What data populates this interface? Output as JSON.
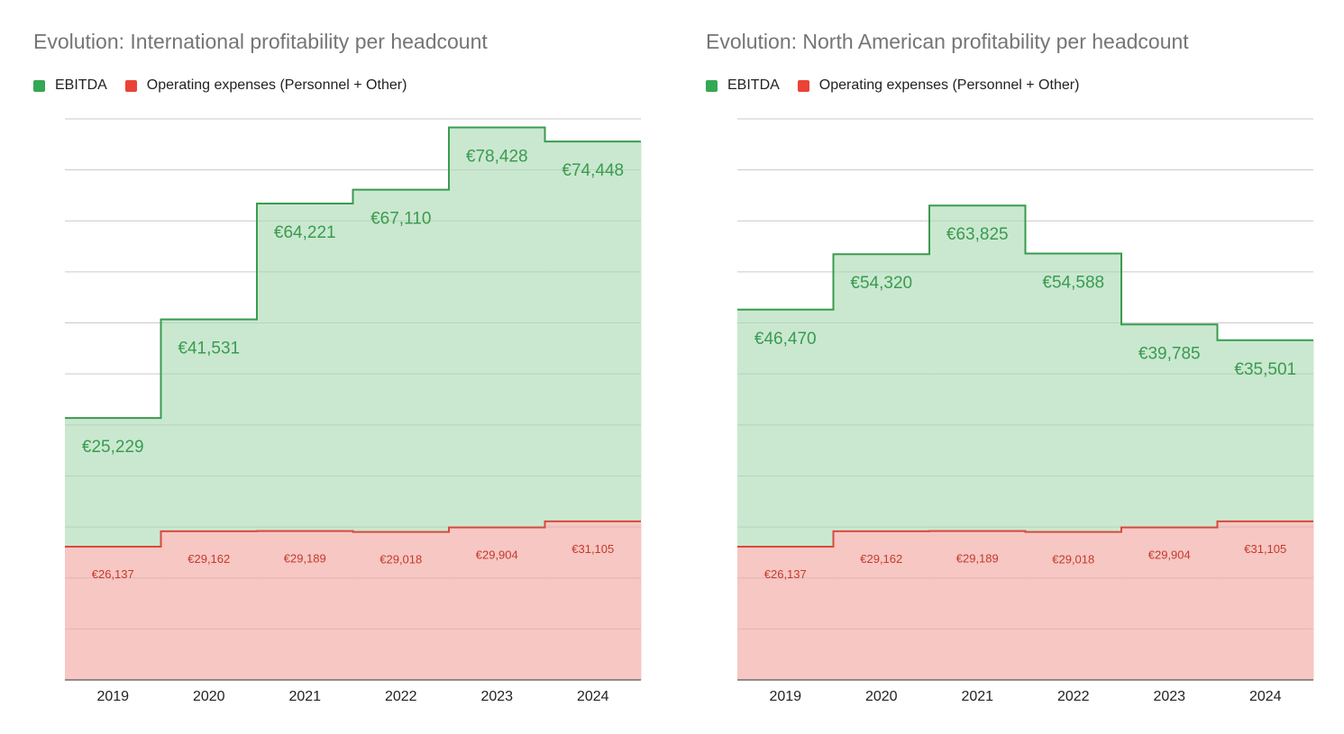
{
  "colors": {
    "ebitda_line": "#3a9b4f",
    "ebitda_fill": "#c4e6cb",
    "ebitda_label": "#3a9b4f",
    "opex_line": "#d94a3d",
    "opex_fill": "#f6c4c0",
    "opex_label": "#c5392d",
    "legend_ebitda": "#34a853",
    "legend_opex": "#ea4335",
    "grid": "#dcdcdc"
  },
  "chart_data": [
    {
      "type": "area",
      "subtype": "stepped-stacked",
      "title": "Evolution: International profitability per headcount",
      "xlabel": "",
      "ylabel": "",
      "categories": [
        "2019",
        "2020",
        "2021",
        "2022",
        "2023",
        "2024"
      ],
      "series": [
        {
          "name": "EBITDA",
          "values": [
            25229,
            41531,
            64221,
            67110,
            78428,
            74448
          ],
          "labels": [
            "€25,229",
            "€41,531",
            "€64,221",
            "€67,110",
            "€78,428",
            "€74,448"
          ]
        },
        {
          "name": "Operating expenses (Personnel + Other)",
          "values": [
            26137,
            29162,
            29189,
            29018,
            29904,
            31105
          ],
          "labels": [
            "€26,137",
            "€29,162",
            "€29,189",
            "€29,018",
            "€29,904",
            "€31,105"
          ]
        }
      ],
      "ylim": [
        0,
        110000
      ],
      "grid": true,
      "legend": "top-left"
    },
    {
      "type": "area",
      "subtype": "stepped-stacked",
      "title": "Evolution: North American profitability per headcount",
      "xlabel": "",
      "ylabel": "",
      "categories": [
        "2019",
        "2020",
        "2021",
        "2022",
        "2023",
        "2024"
      ],
      "series": [
        {
          "name": "EBITDA",
          "values": [
            46470,
            54320,
            63825,
            54588,
            39785,
            35501
          ],
          "labels": [
            "€46,470",
            "€54,320",
            "€63,825",
            "€54,588",
            "€39,785",
            "€35,501"
          ]
        },
        {
          "name": "Operating expenses (Personnel + Other)",
          "values": [
            26137,
            29162,
            29189,
            29018,
            29904,
            31105
          ],
          "labels": [
            "€26,137",
            "€29,162",
            "€29,189",
            "€29,018",
            "€29,904",
            "€31,105"
          ]
        }
      ],
      "ylim": [
        0,
        110000
      ],
      "grid": true,
      "legend": "top-left"
    }
  ]
}
